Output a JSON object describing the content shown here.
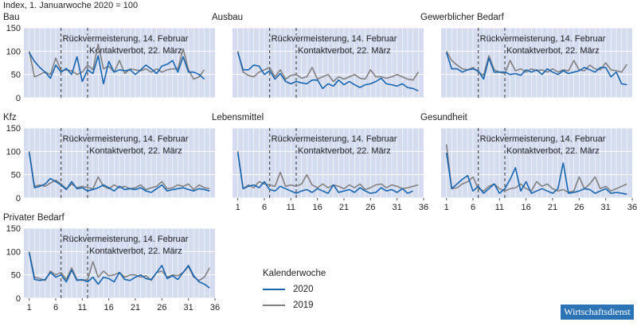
{
  "header": {
    "index_label": "Index, 1. Januarwoche 2020 = 100"
  },
  "legend": {
    "title": "Kalenderwoche",
    "items": [
      {
        "label": "2020",
        "color": "#1565b0"
      },
      {
        "label": "2019",
        "color": "#808080"
      }
    ]
  },
  "badge": {
    "text": "Wirtschaftsdienst"
  },
  "colors": {
    "panel_bg": "#d5dcf0",
    "grid": "#ffffff",
    "series_2020": "#1565b0",
    "series_2019": "#808080",
    "vline": "#333333"
  },
  "chart_data": [
    {
      "type": "line",
      "title": "Bau",
      "annotations": [
        "Rückvermeisterung, 14. Februar",
        "Kontaktverbot, 22. März"
      ],
      "vlines": [
        7,
        12
      ],
      "ylim": [
        0,
        150
      ],
      "yticks": [
        0,
        50,
        100,
        150
      ],
      "xlim": [
        0,
        36
      ],
      "xticks": [
        1,
        6,
        11,
        16,
        21,
        26,
        31,
        36
      ],
      "show_xticks": false,
      "show_yticks": true,
      "series": [
        {
          "name": "2020",
          "values": [
            97,
            78,
            65,
            55,
            42,
            70,
            55,
            63,
            50,
            88,
            35,
            60,
            52,
            90,
            30,
            78,
            55,
            60,
            58,
            60,
            50,
            60,
            70,
            62,
            52,
            68,
            72,
            80,
            55,
            88,
            55,
            55,
            50,
            40
          ]
        },
        {
          "name": "2019",
          "values": [
            100,
            45,
            50,
            55,
            50,
            85,
            58,
            60,
            58,
            50,
            55,
            70,
            60,
            115,
            62,
            68,
            55,
            80,
            52,
            62,
            60,
            58,
            62,
            55,
            62,
            55,
            60,
            62,
            62,
            105,
            60,
            40,
            45,
            60
          ]
        }
      ]
    },
    {
      "type": "line",
      "title": "Ausbau",
      "annotations": [
        "Rückvermeisterung, 14. Februar",
        "Kontaktverbot, 22. März"
      ],
      "vlines": [
        7,
        12
      ],
      "ylim": [
        0,
        150
      ],
      "yticks": [
        0,
        50,
        100,
        150
      ],
      "xlim": [
        0,
        36
      ],
      "xticks": [
        1,
        6,
        11,
        16,
        21,
        26,
        31,
        36
      ],
      "show_xticks": false,
      "show_yticks": false,
      "series": [
        {
          "name": "2020",
          "values": [
            97,
            60,
            60,
            70,
            68,
            50,
            58,
            40,
            52,
            35,
            30,
            35,
            32,
            30,
            38,
            38,
            20,
            30,
            25,
            38,
            28,
            35,
            28,
            22,
            28,
            30,
            35,
            42,
            30,
            28,
            25,
            30,
            22,
            20,
            15
          ]
        },
        {
          "name": "2019",
          "values": [
            100,
            55,
            48,
            45,
            55,
            60,
            65,
            45,
            60,
            40,
            48,
            50,
            42,
            45,
            65,
            40,
            45,
            50,
            35,
            45,
            40,
            45,
            50,
            42,
            40,
            60,
            45,
            45,
            42,
            45,
            50,
            45,
            40,
            38,
            55
          ]
        }
      ]
    },
    {
      "type": "line",
      "title": "Gewerblicher Bedarf",
      "annotations": [
        "Rückvermeisterung, 14. Februar",
        "Kontaktverbot, 22. März"
      ],
      "vlines": [
        7,
        12
      ],
      "ylim": [
        0,
        150
      ],
      "yticks": [
        0,
        50,
        100,
        150
      ],
      "xlim": [
        0,
        36
      ],
      "xticks": [
        1,
        6,
        11,
        16,
        21,
        26,
        31,
        36
      ],
      "show_xticks": false,
      "show_yticks": false,
      "series": [
        {
          "name": "2020",
          "values": [
            97,
            62,
            62,
            55,
            60,
            62,
            58,
            40,
            85,
            55,
            55,
            55,
            50,
            52,
            48,
            60,
            55,
            60,
            50,
            62,
            55,
            50,
            58,
            52,
            55,
            58,
            65,
            60,
            55,
            65,
            65,
            45,
            55,
            30,
            28
          ]
        },
        {
          "name": "2019",
          "values": [
            100,
            80,
            70,
            62,
            60,
            65,
            55,
            48,
            90,
            60,
            55,
            52,
            80,
            58,
            62,
            55,
            62,
            58,
            60,
            55,
            62,
            55,
            60,
            58,
            80,
            60,
            58,
            70,
            62,
            60,
            75,
            60,
            58,
            55,
            72
          ]
        }
      ]
    },
    {
      "type": "line",
      "title": "Kfz",
      "annotations": [
        "Rückvermeisterung, 14. Februar",
        "Kontaktverbot, 22. März"
      ],
      "vlines": [
        7,
        12
      ],
      "ylim": [
        0,
        150
      ],
      "yticks": [
        0,
        50,
        100,
        150
      ],
      "xlim": [
        0,
        36
      ],
      "xticks": [
        1,
        6,
        11,
        16,
        21,
        26,
        31,
        36
      ],
      "show_xticks": false,
      "show_yticks": true,
      "series": [
        {
          "name": "2020",
          "values": [
            97,
            22,
            25,
            30,
            42,
            35,
            28,
            18,
            35,
            20,
            22,
            15,
            18,
            22,
            28,
            22,
            15,
            25,
            18,
            20,
            18,
            22,
            15,
            12,
            20,
            28,
            15,
            18,
            20,
            22,
            18,
            15,
            20,
            18,
            15
          ]
        },
        {
          "name": "2019",
          "values": [
            100,
            25,
            28,
            25,
            32,
            38,
            30,
            20,
            30,
            22,
            25,
            22,
            20,
            45,
            25,
            20,
            28,
            22,
            25,
            20,
            22,
            28,
            18,
            22,
            25,
            35,
            20,
            22,
            28,
            25,
            30,
            18,
            28,
            22,
            20
          ]
        }
      ]
    },
    {
      "type": "line",
      "title": "Lebensmittel",
      "annotations": [
        "Rückvermeisterung, 14. Februar",
        "Kontaktverbot, 22. März"
      ],
      "vlines": [
        7,
        12
      ],
      "ylim": [
        0,
        150
      ],
      "yticks": [
        0,
        50,
        100,
        150
      ],
      "xlim": [
        0,
        36
      ],
      "xticks": [
        1,
        6,
        11,
        16,
        21,
        26,
        31,
        36
      ],
      "show_xticks": true,
      "show_yticks": false,
      "series": [
        {
          "name": "2020",
          "values": [
            97,
            20,
            25,
            28,
            22,
            35,
            18,
            15,
            25,
            20,
            15,
            10,
            15,
            18,
            12,
            20,
            15,
            10,
            28,
            12,
            15,
            18,
            12,
            22,
            15,
            10,
            12,
            22,
            15,
            18,
            12,
            20,
            10,
            15
          ]
        },
        {
          "name": "2019",
          "values": [
            100,
            20,
            28,
            22,
            35,
            30,
            28,
            25,
            55,
            25,
            28,
            25,
            30,
            50,
            28,
            22,
            30,
            22,
            28,
            25,
            20,
            28,
            22,
            30,
            18,
            22,
            28,
            30,
            22,
            28,
            25,
            20,
            22,
            25,
            28
          ]
        }
      ]
    },
    {
      "type": "line",
      "title": "Gesundheit",
      "annotations": [
        "Rückvermeisterung, 14. Februar",
        "Kontaktverbot, 22. März"
      ],
      "vlines": [
        7,
        12
      ],
      "ylim": [
        0,
        150
      ],
      "yticks": [
        0,
        50,
        100,
        150
      ],
      "xlim": [
        0,
        36
      ],
      "xticks": [
        1,
        6,
        11,
        16,
        21,
        26,
        31,
        36
      ],
      "show_xticks": true,
      "show_yticks": false,
      "series": [
        {
          "name": "2020",
          "values": [
            97,
            20,
            30,
            40,
            48,
            15,
            25,
            10,
            20,
            30,
            10,
            20,
            40,
            65,
            15,
            35,
            10,
            15,
            20,
            15,
            10,
            20,
            75,
            10,
            12,
            15,
            20,
            18,
            10,
            15,
            20,
            10,
            12,
            10,
            8
          ]
        },
        {
          "name": "2019",
          "values": [
            115,
            20,
            22,
            30,
            35,
            45,
            20,
            15,
            25,
            30,
            20,
            15,
            20,
            22,
            30,
            20,
            15,
            35,
            25,
            30,
            20,
            15,
            18,
            12,
            15,
            45,
            20,
            30,
            45,
            20,
            25,
            15,
            20,
            25,
            30
          ]
        }
      ]
    },
    {
      "type": "line",
      "title": "Privater Bedarf",
      "annotations": [
        "Rückvermeisterung, 14. Februar",
        "Kontaktverbot, 22. März"
      ],
      "vlines": [
        7,
        12
      ],
      "ylim": [
        0,
        150
      ],
      "yticks": [
        0,
        50,
        100,
        150
      ],
      "xlim": [
        0,
        36
      ],
      "xticks": [
        1,
        6,
        11,
        16,
        21,
        26,
        31,
        36
      ],
      "show_xticks": true,
      "show_yticks": true,
      "series": [
        {
          "name": "2020",
          "values": [
            97,
            40,
            38,
            40,
            55,
            45,
            50,
            35,
            60,
            38,
            40,
            35,
            45,
            30,
            45,
            42,
            35,
            55,
            40,
            38,
            45,
            50,
            42,
            40,
            55,
            70,
            42,
            48,
            40,
            55,
            70,
            48,
            35,
            30,
            22
          ]
        },
        {
          "name": "2019",
          "values": [
            100,
            45,
            42,
            38,
            58,
            50,
            55,
            40,
            65,
            40,
            38,
            40,
            78,
            45,
            58,
            48,
            50,
            55,
            45,
            50,
            50,
            45,
            48,
            38,
            55,
            58,
            45,
            50,
            48,
            55,
            68,
            45,
            38,
            45,
            65
          ]
        }
      ]
    }
  ]
}
